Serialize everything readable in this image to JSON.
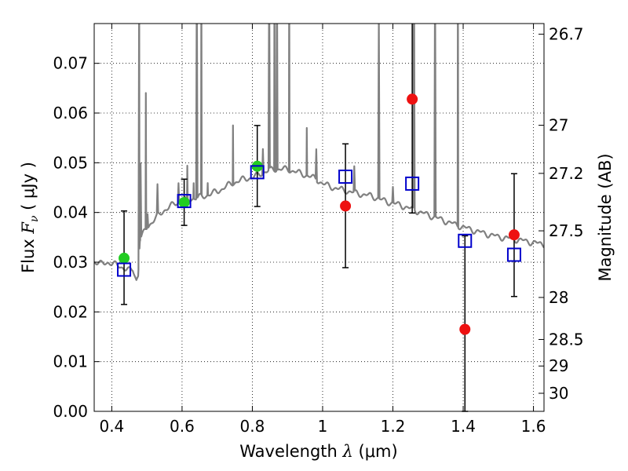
{
  "chart_data": {
    "type": "scatter",
    "xlabel": "Wavelength  λ (μm)",
    "ylabel": "Flux  Fν  ( μJy )",
    "ylabel_parts": {
      "prefix": "Flux  ",
      "symbol": "F",
      "subscript": "ν",
      "suffix": "  ( μJy )"
    },
    "xlabel_parts": {
      "prefix": "Wavelength  ",
      "symbol": "λ",
      "suffix": " (μm)"
    },
    "y2label": "Magnitude (AB)",
    "xlim": [
      0.35,
      1.63
    ],
    "ylim": [
      0.0,
      0.078
    ],
    "grid": true,
    "grid_style": "dotted",
    "x_ticks": [
      0.4,
      0.6,
      0.8,
      1.0,
      1.2,
      1.4,
      1.6
    ],
    "x_tick_labels": [
      "0.4",
      "0.6",
      "0.8",
      "1",
      "1.2",
      "1.4",
      "1.6"
    ],
    "y_ticks": [
      0.0,
      0.01,
      0.02,
      0.03,
      0.04,
      0.05,
      0.06,
      0.07
    ],
    "y_tick_labels": [
      "0.00",
      "0.01",
      "0.02",
      "0.03",
      "0.04",
      "0.05",
      "0.06",
      "0.07"
    ],
    "y2_ticks": [
      {
        "label": "26.7",
        "mag": 26.7
      },
      {
        "label": "27",
        "mag": 27.0
      },
      {
        "label": "27.2",
        "mag": 27.2
      },
      {
        "label": "27.5",
        "mag": 27.5
      },
      {
        "label": "28",
        "mag": 28.0
      },
      {
        "label": "28.5",
        "mag": 28.5
      },
      {
        "label": "29",
        "mag": 29.0
      },
      {
        "label": "30",
        "mag": 30.0
      }
    ],
    "series": [
      {
        "marker": "circle",
        "color": "#22cc22",
        "errorbar_color": "#000000",
        "points": [
          {
            "x": 0.435,
            "y": 0.0308,
            "ylo": 0.0215,
            "yhi": 0.0403
          },
          {
            "x": 0.606,
            "y": 0.042,
            "ylo": 0.0374,
            "yhi": 0.0467
          },
          {
            "x": 0.814,
            "y": 0.0493,
            "ylo": 0.0412,
            "yhi": 0.0575
          }
        ]
      },
      {
        "marker": "circle",
        "color": "#ee1111",
        "errorbar_color": "#000000",
        "points": [
          {
            "x": 1.065,
            "y": 0.0413,
            "ylo": 0.0289,
            "yhi": 0.0538
          },
          {
            "x": 1.255,
            "y": 0.0628,
            "ylo": 0.0399,
            "yhi": 0.079
          },
          {
            "x": 1.405,
            "y": 0.0165,
            "ylo": 0.0,
            "yhi": 0.0353
          },
          {
            "x": 1.545,
            "y": 0.0355,
            "ylo": 0.0231,
            "yhi": 0.0478
          }
        ]
      },
      {
        "marker": "square",
        "color": "#0000cc",
        "points": [
          {
            "x": 0.435,
            "y": 0.0285
          },
          {
            "x": 0.606,
            "y": 0.0423
          },
          {
            "x": 0.814,
            "y": 0.0481
          },
          {
            "x": 1.065,
            "y": 0.0472
          },
          {
            "x": 1.255,
            "y": 0.0458
          },
          {
            "x": 1.405,
            "y": 0.0343
          },
          {
            "x": 1.545,
            "y": 0.0315
          }
        ]
      }
    ],
    "spectrum": {
      "color": "#808080",
      "continuum": [
        [
          0.35,
          0.0302
        ],
        [
          0.37,
          0.0296
        ],
        [
          0.39,
          0.03
        ],
        [
          0.41,
          0.0295
        ],
        [
          0.43,
          0.029
        ],
        [
          0.45,
          0.0283
        ],
        [
          0.46,
          0.0285
        ],
        [
          0.47,
          0.0265
        ],
        [
          0.475,
          0.0275
        ],
        [
          0.48,
          0.0345
        ],
        [
          0.5,
          0.037
        ],
        [
          0.52,
          0.0385
        ],
        [
          0.55,
          0.0405
        ],
        [
          0.58,
          0.0418
        ],
        [
          0.6,
          0.0422
        ],
        [
          0.63,
          0.0428
        ],
        [
          0.66,
          0.0432
        ],
        [
          0.7,
          0.0442
        ],
        [
          0.74,
          0.0458
        ],
        [
          0.78,
          0.0468
        ],
        [
          0.8,
          0.047
        ],
        [
          0.83,
          0.048
        ],
        [
          0.86,
          0.0487
        ],
        [
          0.9,
          0.0487
        ],
        [
          0.94,
          0.0478
        ],
        [
          0.98,
          0.0468
        ],
        [
          1.0,
          0.0458
        ],
        [
          1.03,
          0.045
        ],
        [
          1.06,
          0.0445
        ],
        [
          1.1,
          0.0438
        ],
        [
          1.14,
          0.0433
        ],
        [
          1.18,
          0.0422
        ],
        [
          1.22,
          0.0415
        ],
        [
          1.26,
          0.0405
        ],
        [
          1.3,
          0.0395
        ],
        [
          1.34,
          0.0385
        ],
        [
          1.38,
          0.0375
        ],
        [
          1.42,
          0.0366
        ],
        [
          1.46,
          0.0358
        ],
        [
          1.5,
          0.0351
        ],
        [
          1.54,
          0.0347
        ],
        [
          1.58,
          0.0342
        ],
        [
          1.61,
          0.0338
        ],
        [
          1.63,
          0.0336
        ]
      ],
      "lines": [
        [
          0.478,
          0.09
        ],
        [
          0.482,
          0.05
        ],
        [
          0.497,
          0.064
        ],
        [
          0.502,
          0.04
        ],
        [
          0.53,
          0.045
        ],
        [
          0.59,
          0.046
        ],
        [
          0.615,
          0.049
        ],
        [
          0.633,
          0.046
        ],
        [
          0.642,
          0.09
        ],
        [
          0.655,
          0.09
        ],
        [
          0.673,
          0.046
        ],
        [
          0.745,
          0.058
        ],
        [
          0.83,
          0.053
        ],
        [
          0.848,
          0.09
        ],
        [
          0.863,
          0.09
        ],
        [
          0.87,
          0.09
        ],
        [
          0.905,
          0.09
        ],
        [
          0.955,
          0.057
        ],
        [
          0.982,
          0.053
        ],
        [
          1.09,
          0.049
        ],
        [
          1.16,
          0.079
        ],
        [
          1.2,
          0.045
        ],
        [
          1.26,
          0.09
        ],
        [
          1.32,
          0.09
        ],
        [
          1.385,
          0.09
        ]
      ]
    }
  }
}
